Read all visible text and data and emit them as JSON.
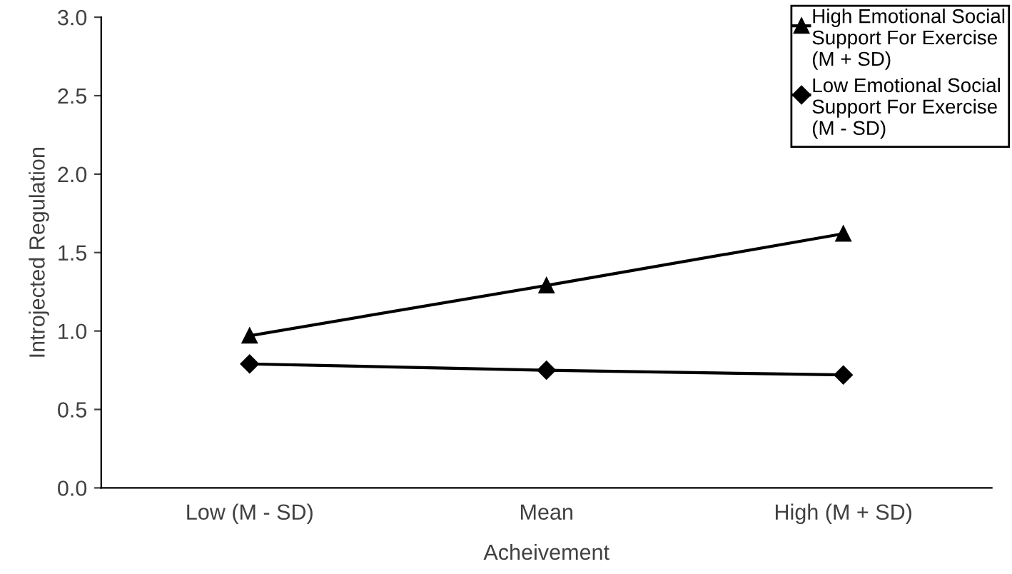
{
  "chart_data": {
    "type": "line",
    "xlabel": "Acheivement",
    "ylabel": "Introjected Regulation",
    "categories": [
      "Low (M - SD)",
      "Mean",
      "High (M + SD)"
    ],
    "series": [
      {
        "name": "High Emotional Social Support For Exercise (M + SD)",
        "color": "#000000",
        "marker": "triangle",
        "values": [
          0.97,
          1.29,
          1.62
        ]
      },
      {
        "name": "Low Emotional Social Support For Exercise (M - SD)",
        "color": "#000000",
        "marker": "diamond",
        "values": [
          0.79,
          0.75,
          0.72
        ]
      }
    ],
    "ylim": [
      0,
      3.0
    ],
    "yticks": [
      {
        "value": 0,
        "label": "0.0"
      },
      {
        "value": 0.5,
        "label": "0.5"
      },
      {
        "value": 1,
        "label": "1.0"
      },
      {
        "value": 1.5,
        "label": "1.5"
      },
      {
        "value": 2,
        "label": "2.0"
      },
      {
        "value": 2.5,
        "label": "2.5"
      },
      {
        "value": 3,
        "label": "3.0"
      }
    ],
    "legend": "top right",
    "grid": false
  }
}
